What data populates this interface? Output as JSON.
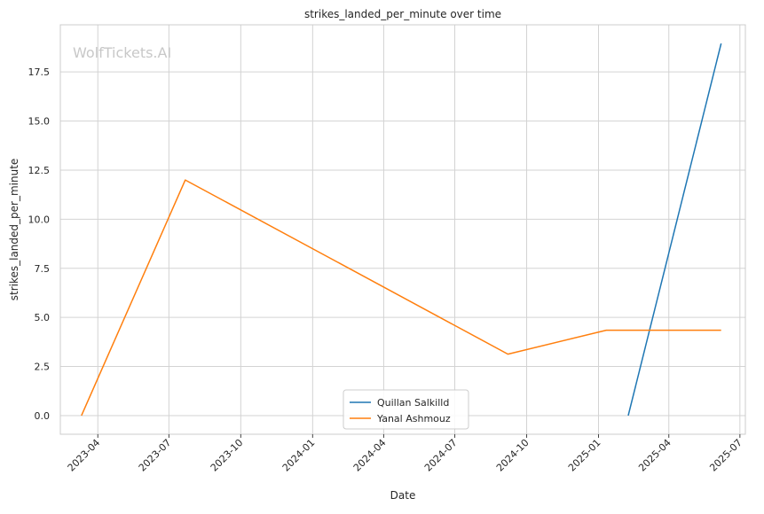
{
  "watermark": "WolfTickets.AI",
  "colors": {
    "grid": "#d3d3d3",
    "frame": "#cccccc",
    "text": "#262626",
    "watermark": "#c8c8c8"
  },
  "chart_data": {
    "type": "line",
    "title": "strikes_landed_per_minute over time",
    "xlabel": "Date",
    "ylabel": "strikes_landed_per_minute",
    "x_axis_type": "date",
    "xlim": [
      "2023-02-12",
      "2025-07-08"
    ],
    "ylim": [
      -0.95,
      19.9
    ],
    "grid": true,
    "legend_position": "bottom-center",
    "x_ticks": [
      "2023-04",
      "2023-07",
      "2023-10",
      "2024-01",
      "2024-04",
      "2024-07",
      "2024-10",
      "2025-01",
      "2025-04",
      "2025-07"
    ],
    "x_tick_values": [
      "2023-04-01",
      "2023-07-01",
      "2023-10-01",
      "2024-01-01",
      "2024-04-01",
      "2024-07-01",
      "2024-10-01",
      "2025-01-01",
      "2025-04-01",
      "2025-07-01"
    ],
    "y_ticks": [
      "0.0",
      "2.5",
      "5.0",
      "7.5",
      "10.0",
      "12.5",
      "15.0",
      "17.5"
    ],
    "y_tick_values": [
      0,
      2.5,
      5,
      7.5,
      10,
      12.5,
      15,
      17.5
    ],
    "series": [
      {
        "name": "Quillan Salkilld",
        "color": "#1f77b4",
        "x": [
          "2025-02-08",
          "2025-06-07"
        ],
        "y": [
          0.0,
          18.95
        ]
      },
      {
        "name": "Yanal Ashmouz",
        "color": "#ff7f0e",
        "x": [
          "2023-03-11",
          "2023-07-22",
          "2024-09-07",
          "2025-01-11",
          "2025-06-07"
        ],
        "y": [
          0.0,
          12.0,
          3.13,
          4.35,
          4.35
        ]
      }
    ]
  }
}
